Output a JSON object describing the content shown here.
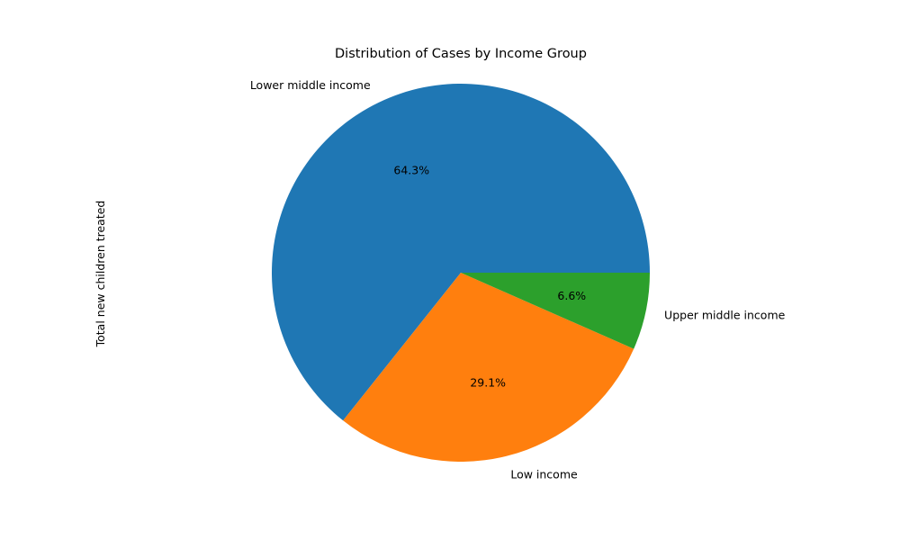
{
  "chart_data": {
    "type": "pie",
    "title": "Distribution of Cases by Income Group",
    "ylabel": "Total new children treated",
    "slices": [
      {
        "label": "Lower middle income",
        "percent": 64.3,
        "display": "64.3%",
        "color": "#1f77b4"
      },
      {
        "label": "Low income",
        "percent": 29.1,
        "display": "29.1%",
        "color": "#ff7f0e"
      },
      {
        "label": "Upper middle income",
        "percent": 6.6,
        "display": "6.6%",
        "color": "#2ca02c"
      }
    ],
    "start_angle_deg": 0,
    "direction": "counterclockwise",
    "legend": "none"
  }
}
